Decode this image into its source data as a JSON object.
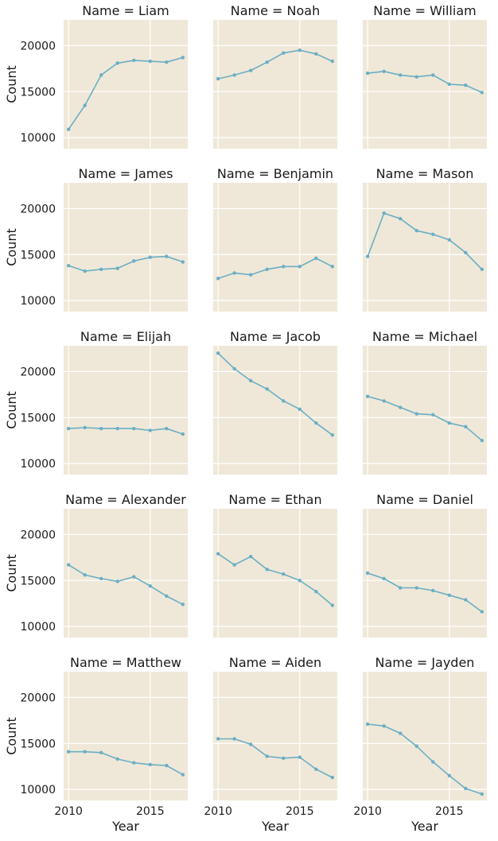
{
  "colors": {
    "background": "#ffffff",
    "panel": "#efe8d8",
    "grid": "#ffffff",
    "line": "#6aaec4",
    "text": "#1a1a1a"
  },
  "chart_data": {
    "type": "line",
    "grid": true,
    "xlabel": "Year",
    "ylabel": "Count",
    "xlim": [
      2009.7,
      2017.3
    ],
    "ylim": [
      8800,
      22800
    ],
    "xticks": [
      2010,
      2015
    ],
    "yticks": [
      10000,
      15000,
      20000
    ],
    "x": [
      2010,
      2011,
      2012,
      2013,
      2014,
      2015,
      2016,
      2017
    ],
    "panels": [
      {
        "title": "Name = Liam",
        "values": [
          10900,
          13500,
          16800,
          18100,
          18400,
          18300,
          18200,
          18700
        ]
      },
      {
        "title": "Name = Noah",
        "values": [
          16400,
          16800,
          17300,
          18200,
          19200,
          19500,
          19100,
          18300
        ]
      },
      {
        "title": "Name = William",
        "values": [
          17000,
          17200,
          16800,
          16600,
          16800,
          15800,
          15700,
          14900
        ]
      },
      {
        "title": "Name = James",
        "values": [
          13800,
          13200,
          13400,
          13500,
          14300,
          14700,
          14800,
          14200
        ]
      },
      {
        "title": "Name = Benjamin",
        "values": [
          12400,
          13000,
          12800,
          13400,
          13700,
          13700,
          14600,
          13700
        ]
      },
      {
        "title": "Name = Mason",
        "values": [
          14800,
          19500,
          18900,
          17600,
          17200,
          16600,
          15200,
          13400
        ]
      },
      {
        "title": "Name = Elijah",
        "values": [
          13800,
          13900,
          13800,
          13800,
          13800,
          13600,
          13800,
          13200
        ]
      },
      {
        "title": "Name = Jacob",
        "values": [
          22000,
          20300,
          19000,
          18100,
          16800,
          15900,
          14400,
          13100
        ]
      },
      {
        "title": "Name = Michael",
        "values": [
          17300,
          16800,
          16100,
          15400,
          15300,
          14400,
          14000,
          12500
        ]
      },
      {
        "title": "Name = Alexander",
        "values": [
          16700,
          15600,
          15200,
          14900,
          15400,
          14400,
          13300,
          12400
        ]
      },
      {
        "title": "Name = Ethan",
        "values": [
          17900,
          16700,
          17600,
          16200,
          15700,
          15000,
          13800,
          12300
        ]
      },
      {
        "title": "Name = Daniel",
        "values": [
          15800,
          15200,
          14200,
          14200,
          13900,
          13400,
          12900,
          11600
        ]
      },
      {
        "title": "Name = Matthew",
        "values": [
          14100,
          14100,
          14000,
          13300,
          12900,
          12700,
          12600,
          11600
        ]
      },
      {
        "title": "Name = Aiden",
        "values": [
          15500,
          15500,
          14900,
          13600,
          13400,
          13500,
          12200,
          11300
        ]
      },
      {
        "title": "Name = Jayden",
        "values": [
          17100,
          16900,
          16100,
          14700,
          13000,
          11500,
          10100,
          9500
        ]
      }
    ]
  }
}
